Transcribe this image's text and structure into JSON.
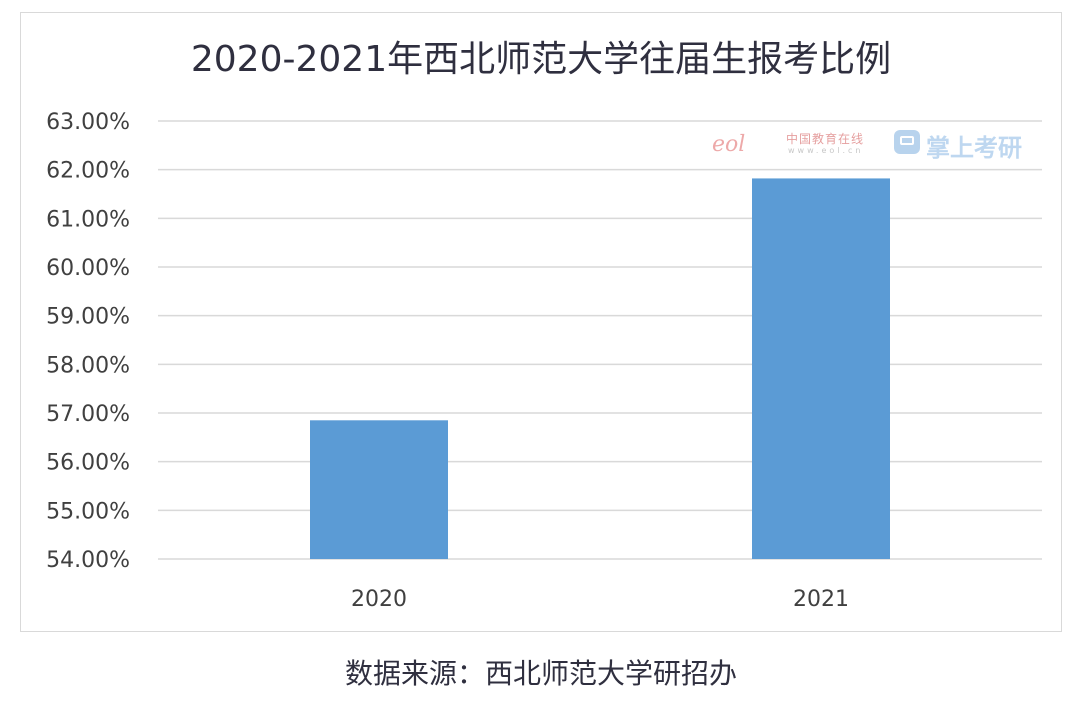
{
  "title": "2020-2021年西北师范大学往届生报考比例",
  "source": "数据来源：西北师范大学研招办",
  "watermark": {
    "logo_text": "eol",
    "site_name": "中国教育在线",
    "url_text": "www.eol.cn",
    "brand": "掌上考研"
  },
  "colors": {
    "bar": "#5b9bd5",
    "grid": "#d9d9d9",
    "text": "#404040"
  },
  "chart_data": {
    "type": "bar",
    "title": "2020-2021年西北师范大学往届生报考比例",
    "categories": [
      "2020",
      "2021"
    ],
    "values": [
      56.85,
      61.82
    ],
    "value_format": "percent",
    "ylim": [
      54,
      63
    ],
    "yticks": [
      54,
      55,
      56,
      57,
      58,
      59,
      60,
      61,
      62,
      63
    ],
    "ytick_labels": [
      "54.00%",
      "55.00%",
      "56.00%",
      "57.00%",
      "58.00%",
      "59.00%",
      "60.00%",
      "61.00%",
      "62.00%",
      "63.00%"
    ],
    "xlabel": "",
    "ylabel": "",
    "grid": true,
    "legend": "none"
  }
}
